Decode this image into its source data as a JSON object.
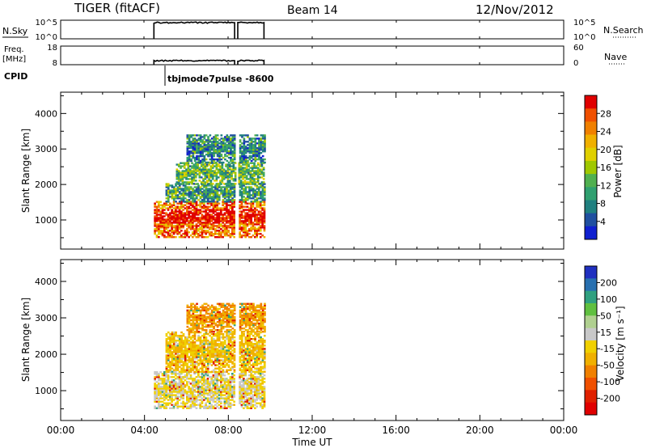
{
  "header": {
    "title": "TIGER (fitACF)",
    "beam": "Beam 14",
    "date": "12/Nov/2012"
  },
  "parameter_panels": {
    "nsky": {
      "label": "N.Sky",
      "right_label": "N.Search",
      "left_ticks": [
        "10^5",
        "10^0"
      ],
      "right_ticks": [
        "10^5",
        "10^0"
      ]
    },
    "freq": {
      "label_line1": "Freq.",
      "label_line2": "[MHz]",
      "right_label": "Nave",
      "left_ticks": [
        "18",
        "8"
      ],
      "right_ticks": [
        "60",
        "0"
      ]
    },
    "cpid": {
      "label": "CPID",
      "value": "tbjmode7pulse  -8600"
    }
  },
  "colorbars": {
    "power": {
      "label": "Power [dB]",
      "ticks": [
        "28",
        "24",
        "20",
        "16",
        "12",
        "8",
        "4"
      ],
      "colors": [
        "#e00000",
        "#f05000",
        "#f08000",
        "#f0b000",
        "#e0d000",
        "#a0c800",
        "#50b050",
        "#30a070",
        "#208080",
        "#2050a0",
        "#1020d0"
      ]
    },
    "velocity": {
      "label": "Velocity [m s⁻¹]",
      "ticks": [
        "200",
        "100",
        "50",
        "15",
        "-15",
        "-50",
        "-100",
        "-200"
      ],
      "colors": [
        "#2030c0",
        "#2870b0",
        "#30a080",
        "#60c040",
        "#b0d090",
        "#c8c8c8",
        "#f0d000",
        "#f0b000",
        "#f08000",
        "#f05000",
        "#e02000",
        "#e00000"
      ]
    }
  },
  "chart_data": [
    {
      "type": "heatmap",
      "name": "power",
      "xlabel": "Time UT",
      "ylabel": "Slant Range [km]",
      "xlim_hours": [
        0,
        24
      ],
      "ylim_km": [
        180,
        4600
      ],
      "xticks": [
        "00:00",
        "04:00",
        "08:00",
        "12:00",
        "16:00",
        "20:00",
        "00:00"
      ],
      "yticks": [
        1000,
        2000,
        3000,
        4000
      ],
      "scale": "Power [dB]",
      "clim": [
        0,
        30
      ],
      "echo_regions": [
        {
          "t_start": 4.45,
          "t_end": 9.7,
          "r_start": 500,
          "r_end": 1500,
          "value": 24
        },
        {
          "t_start": 5.0,
          "t_end": 9.7,
          "r_start": 1500,
          "r_end": 2000,
          "value": 10
        },
        {
          "t_start": 5.5,
          "t_end": 9.7,
          "r_start": 2000,
          "r_end": 2600,
          "value": 12
        },
        {
          "t_start": 6.0,
          "t_end": 9.7,
          "r_start": 2600,
          "r_end": 3400,
          "value": 8
        }
      ]
    },
    {
      "type": "heatmap",
      "name": "velocity",
      "xlabel": "Time UT",
      "ylabel": "Slant Range [km]",
      "xlim_hours": [
        0,
        24
      ],
      "ylim_km": [
        180,
        4600
      ],
      "xticks": [
        "00:00",
        "04:00",
        "08:00",
        "12:00",
        "16:00",
        "20:00",
        "00:00"
      ],
      "yticks": [
        1000,
        2000,
        3000,
        4000
      ],
      "scale": "Velocity [m s-1]",
      "clim": [
        -250,
        250
      ],
      "echo_regions": [
        {
          "t_start": 4.45,
          "t_end": 9.7,
          "r_start": 500,
          "r_end": 1500,
          "value": 0
        },
        {
          "t_start": 5.0,
          "t_end": 9.7,
          "r_start": 1500,
          "r_end": 2600,
          "value": -40
        },
        {
          "t_start": 6.0,
          "t_end": 9.7,
          "r_start": 2600,
          "r_end": 3400,
          "value": -80
        }
      ]
    }
  ],
  "operation_periods": [
    {
      "start": 4.45,
      "end": 8.3
    },
    {
      "start": 8.45,
      "end": 9.7
    }
  ]
}
